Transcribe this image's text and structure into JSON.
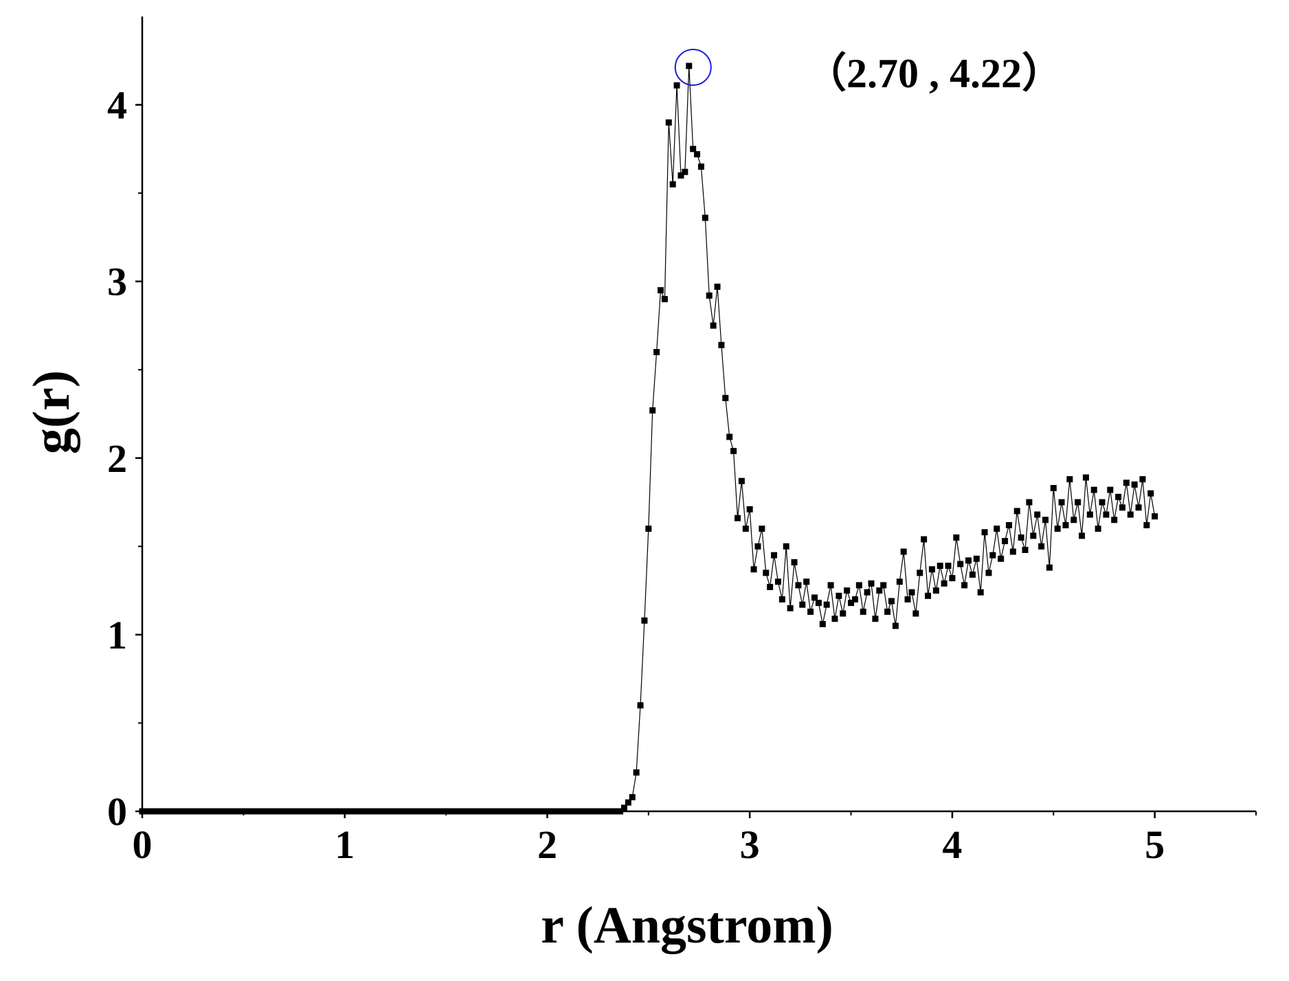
{
  "chart_data": {
    "type": "line",
    "xlabel": "r (Angstrom)",
    "ylabel": "g(r)",
    "annotation": "（2.70 , 4.22）",
    "xlim": [
      0,
      5.5
    ],
    "ylim": [
      0,
      4.5
    ],
    "xticks": [
      0,
      1,
      2,
      3,
      4,
      5
    ],
    "yticks": [
      0,
      1,
      2,
      3,
      4
    ],
    "xminorticks": [
      0.5,
      1.5,
      2.5,
      3.5,
      4.5,
      5.5
    ],
    "yminorticks": [
      0.5,
      1.5,
      2.5,
      3.5
    ],
    "color": "#000000",
    "highlight_color": "#1f1fd6",
    "x": [
      0,
      0.02,
      0.04,
      0.06,
      0.08,
      0.1,
      0.12,
      0.14,
      0.16,
      0.18,
      0.2,
      0.22,
      0.24,
      0.26,
      0.28,
      0.3,
      0.32,
      0.34,
      0.36,
      0.38,
      0.4,
      0.42,
      0.44,
      0.46,
      0.48,
      0.5,
      0.52,
      0.54,
      0.56,
      0.58,
      0.6,
      0.62,
      0.64,
      0.66,
      0.68,
      0.7,
      0.72,
      0.74,
      0.76,
      0.78,
      0.8,
      0.82,
      0.84,
      0.86,
      0.88,
      0.9,
      0.92,
      0.94,
      0.96,
      0.98,
      1,
      1.02,
      1.04,
      1.06,
      1.08,
      1.1,
      1.12,
      1.14,
      1.16,
      1.18,
      1.2,
      1.22,
      1.24,
      1.26,
      1.28,
      1.3,
      1.32,
      1.34,
      1.36,
      1.38,
      1.4,
      1.42,
      1.44,
      1.46,
      1.48,
      1.5,
      1.52,
      1.54,
      1.56,
      1.58,
      1.6,
      1.62,
      1.64,
      1.66,
      1.68,
      1.7,
      1.72,
      1.74,
      1.76,
      1.78,
      1.8,
      1.82,
      1.84,
      1.86,
      1.88,
      1.9,
      1.92,
      1.94,
      1.96,
      1.98,
      2,
      2.02,
      2.04,
      2.06,
      2.08,
      2.1,
      2.12,
      2.14,
      2.16,
      2.18,
      2.2,
      2.22,
      2.24,
      2.26,
      2.28,
      2.3,
      2.32,
      2.34,
      2.36,
      2.38,
      2.4,
      2.42,
      2.44,
      2.46,
      2.48,
      2.5,
      2.52,
      2.54,
      2.56,
      2.58,
      2.6,
      2.62,
      2.64,
      2.66,
      2.68,
      2.7,
      2.72,
      2.74,
      2.76,
      2.78,
      2.8,
      2.82,
      2.84,
      2.86,
      2.88,
      2.9,
      2.92,
      2.94,
      2.96,
      2.98,
      3,
      3.02,
      3.04,
      3.06,
      3.08,
      3.1,
      3.12,
      3.14,
      3.16,
      3.18,
      3.2,
      3.22,
      3.24,
      3.26,
      3.28,
      3.3,
      3.32,
      3.34,
      3.36,
      3.38,
      3.4,
      3.42,
      3.44,
      3.46,
      3.48,
      3.5,
      3.52,
      3.54,
      3.56,
      3.58,
      3.6,
      3.62,
      3.64,
      3.66,
      3.68,
      3.7,
      3.72,
      3.74,
      3.76,
      3.78,
      3.8,
      3.82,
      3.84,
      3.86,
      3.88,
      3.9,
      3.92,
      3.94,
      3.96,
      3.98,
      4,
      4.02,
      4.04,
      4.06,
      4.08,
      4.1,
      4.12,
      4.14,
      4.16,
      4.18,
      4.2,
      4.22,
      4.24,
      4.26,
      4.28,
      4.3,
      4.32,
      4.34,
      4.36,
      4.38,
      4.4,
      4.42,
      4.44,
      4.46,
      4.48,
      4.5,
      4.52,
      4.54,
      4.56,
      4.58,
      4.6,
      4.62,
      4.64,
      4.66,
      4.68,
      4.7,
      4.72,
      4.74,
      4.76,
      4.78,
      4.8,
      4.82,
      4.84,
      4.86,
      4.88,
      4.9,
      4.92,
      4.94,
      4.96,
      4.98,
      5
    ],
    "values": [
      0,
      0,
      0,
      0,
      0,
      0,
      0,
      0,
      0,
      0,
      0,
      0,
      0,
      0,
      0,
      0,
      0,
      0,
      0,
      0,
      0,
      0,
      0,
      0,
      0,
      0,
      0,
      0,
      0,
      0,
      0,
      0,
      0,
      0,
      0,
      0,
      0,
      0,
      0,
      0,
      0,
      0,
      0,
      0,
      0,
      0,
      0,
      0,
      0,
      0,
      0,
      0,
      0,
      0,
      0,
      0,
      0,
      0,
      0,
      0,
      0,
      0,
      0,
      0,
      0,
      0,
      0,
      0,
      0,
      0,
      0,
      0,
      0,
      0,
      0,
      0,
      0,
      0,
      0,
      0,
      0,
      0,
      0,
      0,
      0,
      0,
      0,
      0,
      0,
      0,
      0,
      0,
      0,
      0,
      0,
      0,
      0,
      0,
      0,
      0,
      0,
      0,
      0,
      0,
      0,
      0,
      0,
      0,
      0,
      0,
      0,
      0,
      0,
      0,
      0,
      0,
      0,
      0,
      0,
      0.02,
      0.05,
      0.08,
      0.22,
      0.6,
      1.08,
      1.6,
      2.27,
      2.6,
      2.95,
      2.9,
      3.9,
      3.55,
      4.11,
      3.6,
      3.62,
      4.22,
      3.75,
      3.72,
      3.65,
      3.36,
      2.92,
      2.75,
      2.97,
      2.64,
      2.34,
      2.12,
      2.04,
      1.66,
      1.87,
      1.6,
      1.71,
      1.37,
      1.5,
      1.6,
      1.35,
      1.27,
      1.45,
      1.3,
      1.2,
      1.5,
      1.15,
      1.41,
      1.28,
      1.17,
      1.3,
      1.13,
      1.21,
      1.18,
      1.06,
      1.17,
      1.28,
      1.09,
      1.22,
      1.12,
      1.25,
      1.18,
      1.2,
      1.28,
      1.13,
      1.24,
      1.29,
      1.09,
      1.25,
      1.28,
      1.13,
      1.19,
      1.05,
      1.3,
      1.47,
      1.2,
      1.24,
      1.12,
      1.35,
      1.54,
      1.22,
      1.37,
      1.25,
      1.39,
      1.29,
      1.39,
      1.32,
      1.55,
      1.4,
      1.28,
      1.42,
      1.34,
      1.43,
      1.24,
      1.58,
      1.35,
      1.45,
      1.6,
      1.43,
      1.53,
      1.62,
      1.47,
      1.7,
      1.55,
      1.48,
      1.75,
      1.56,
      1.68,
      1.5,
      1.65,
      1.38,
      1.83,
      1.6,
      1.75,
      1.62,
      1.88,
      1.65,
      1.75,
      1.56,
      1.89,
      1.68,
      1.82,
      1.6,
      1.75,
      1.68,
      1.82,
      1.65,
      1.78,
      1.72,
      1.86,
      1.68,
      1.85,
      1.72,
      1.88,
      1.62,
      1.8,
      1.67
    ],
    "highlight_index": 135
  }
}
